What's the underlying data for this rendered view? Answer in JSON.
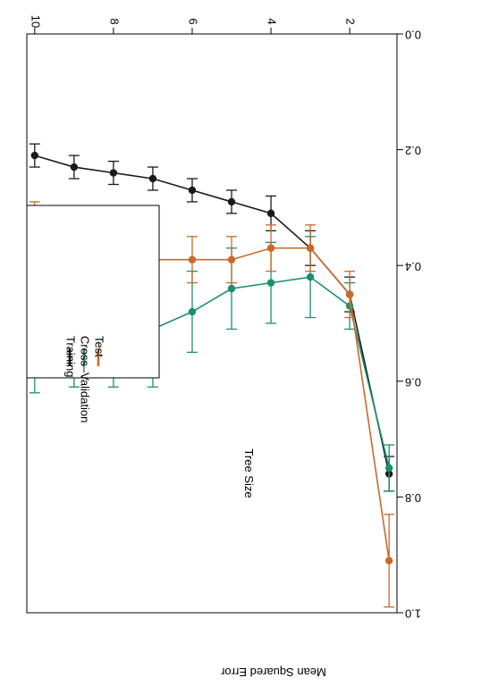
{
  "chart_data": {
    "type": "line",
    "title": "",
    "xlabel": "Tree Size",
    "ylabel": "Mean Squared Error",
    "x": [
      1,
      2,
      3,
      4,
      5,
      6,
      7,
      8,
      9,
      10
    ],
    "xticks": [
      "2",
      "4",
      "6",
      "8",
      "10"
    ],
    "yticks": [
      "0.0",
      "0.2",
      "0.4",
      "0.6",
      "0.8",
      "1.0"
    ],
    "ylim": [
      0,
      1.0
    ],
    "xlim": [
      0.8,
      10.2
    ],
    "grid": false,
    "legend_position": "top-left",
    "series": [
      {
        "name": "Training",
        "color": "#1a1a1a",
        "values": [
          0.76,
          0.45,
          0.37,
          0.31,
          0.29,
          0.27,
          0.25,
          0.24,
          0.23,
          0.21
        ],
        "errors": [
          0.03,
          0.03,
          0.03,
          0.03,
          0.02,
          0.02,
          0.02,
          0.02,
          0.02,
          0.02
        ]
      },
      {
        "name": "Cross–Validation",
        "color": "#1a9070",
        "values": [
          0.75,
          0.47,
          0.42,
          0.43,
          0.44,
          0.48,
          0.51,
          0.51,
          0.51,
          0.52
        ],
        "errors": [
          0.04,
          0.04,
          0.07,
          0.07,
          0.07,
          0.07,
          0.1,
          0.1,
          0.1,
          0.1
        ]
      },
      {
        "name": "Test",
        "color": "#c96a2a",
        "values": [
          0.91,
          0.45,
          0.37,
          0.37,
          0.39,
          0.39,
          0.39,
          0.38,
          0.34,
          0.33
        ],
        "errors": [
          0.08,
          0.04,
          0.04,
          0.04,
          0.04,
          0.04,
          0.04,
          0.04,
          0.04,
          0.04
        ]
      }
    ]
  }
}
